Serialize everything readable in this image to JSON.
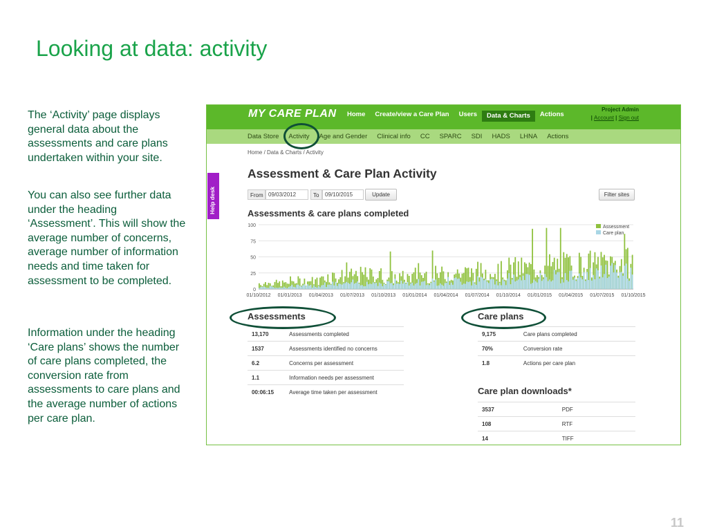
{
  "slide": {
    "title": "Looking at data: activity",
    "paragraphs": [
      "The ‘Activity’ page displays general data about the assessments and care plans undertaken within your site.",
      "You can also see further data under the heading ‘Assessment’. This will show the average number of concerns, average number of information needs and time taken for assessment to be completed.",
      "Information under the heading ‘Care plans’ shows the number of care plans completed, the conversion rate from assessments to care plans and the average number of actions per care plan."
    ],
    "page_number": "11"
  },
  "app": {
    "logo": "MY CARE PLAN",
    "top_nav": [
      "Home",
      "Create/view a Care Plan",
      "Users",
      "Data & Charts",
      "Actions"
    ],
    "top_nav_active": "Data & Charts",
    "user": "Project Admin",
    "user_links": [
      "Account",
      "Sign out"
    ],
    "sub_nav": [
      "Data Store",
      "Activity",
      "Age and Gender",
      "Clinical info",
      "CC",
      "SPARC",
      "SDI",
      "HADS",
      "LHNA",
      "Actions"
    ],
    "breadcrumb": "Home / Data & Charts / Activity",
    "help_desk": "Help desk",
    "page_heading": "Assessment & Care Plan Activity",
    "filters": {
      "from_label": "From",
      "from_value": "09/03/2012",
      "to_label": "To",
      "to_value": "09/10/2015",
      "update_label": "Update",
      "filter_sites_label": "Filter sites"
    },
    "chart_section_title": "Assessments & care plans completed",
    "assessments": {
      "title": "Assessments",
      "rows": [
        {
          "value": "13,170",
          "label": "Assessments completed"
        },
        {
          "value": "1537",
          "label": "Assessments identified no concerns"
        },
        {
          "value": "6.2",
          "label": "Concerns per assessment"
        },
        {
          "value": "1.1",
          "label": "Information needs per assessment"
        },
        {
          "value": "00:06:15",
          "label": "Average time taken per assessment"
        }
      ]
    },
    "care_plans": {
      "title": "Care plans",
      "rows": [
        {
          "value": "9,175",
          "label": "Care plans completed"
        },
        {
          "value": "70%",
          "label": "Conversion rate"
        },
        {
          "value": "1.8",
          "label": "Actions per care plan"
        }
      ]
    },
    "downloads": {
      "title": "Care plan downloads*",
      "rows": [
        {
          "value": "3537",
          "label": "PDF"
        },
        {
          "value": "108",
          "label": "RTF"
        },
        {
          "value": "14",
          "label": "TIFF"
        }
      ]
    }
  },
  "chart_data": {
    "type": "bar",
    "title": "",
    "x_tick_labels": [
      "01/10/2012",
      "01/01/2013",
      "01/04/2013",
      "01/07/2013",
      "01/10/2013",
      "01/01/2014",
      "01/04/2014",
      "01/07/2014",
      "01/10/2014",
      "01/01/2015",
      "01/04/2015",
      "01/07/2015",
      "01/10/2015"
    ],
    "y_ticks": [
      0,
      25,
      50,
      75,
      100
    ],
    "ylim": [
      0,
      100
    ],
    "legend_position": "top-right",
    "colors": {
      "Assessment": "#8fc13e",
      "Care plan": "#a9d6e5"
    },
    "series": [
      {
        "name": "Assessment",
        "quarterly_approx": [
          10,
          14,
          22,
          24,
          20,
          25,
          28,
          30,
          35,
          40,
          42,
          45
        ]
      },
      {
        "name": "Care plan",
        "quarterly_approx": [
          3,
          5,
          8,
          10,
          11,
          12,
          13,
          14,
          18,
          22,
          25,
          30
        ]
      }
    ]
  }
}
